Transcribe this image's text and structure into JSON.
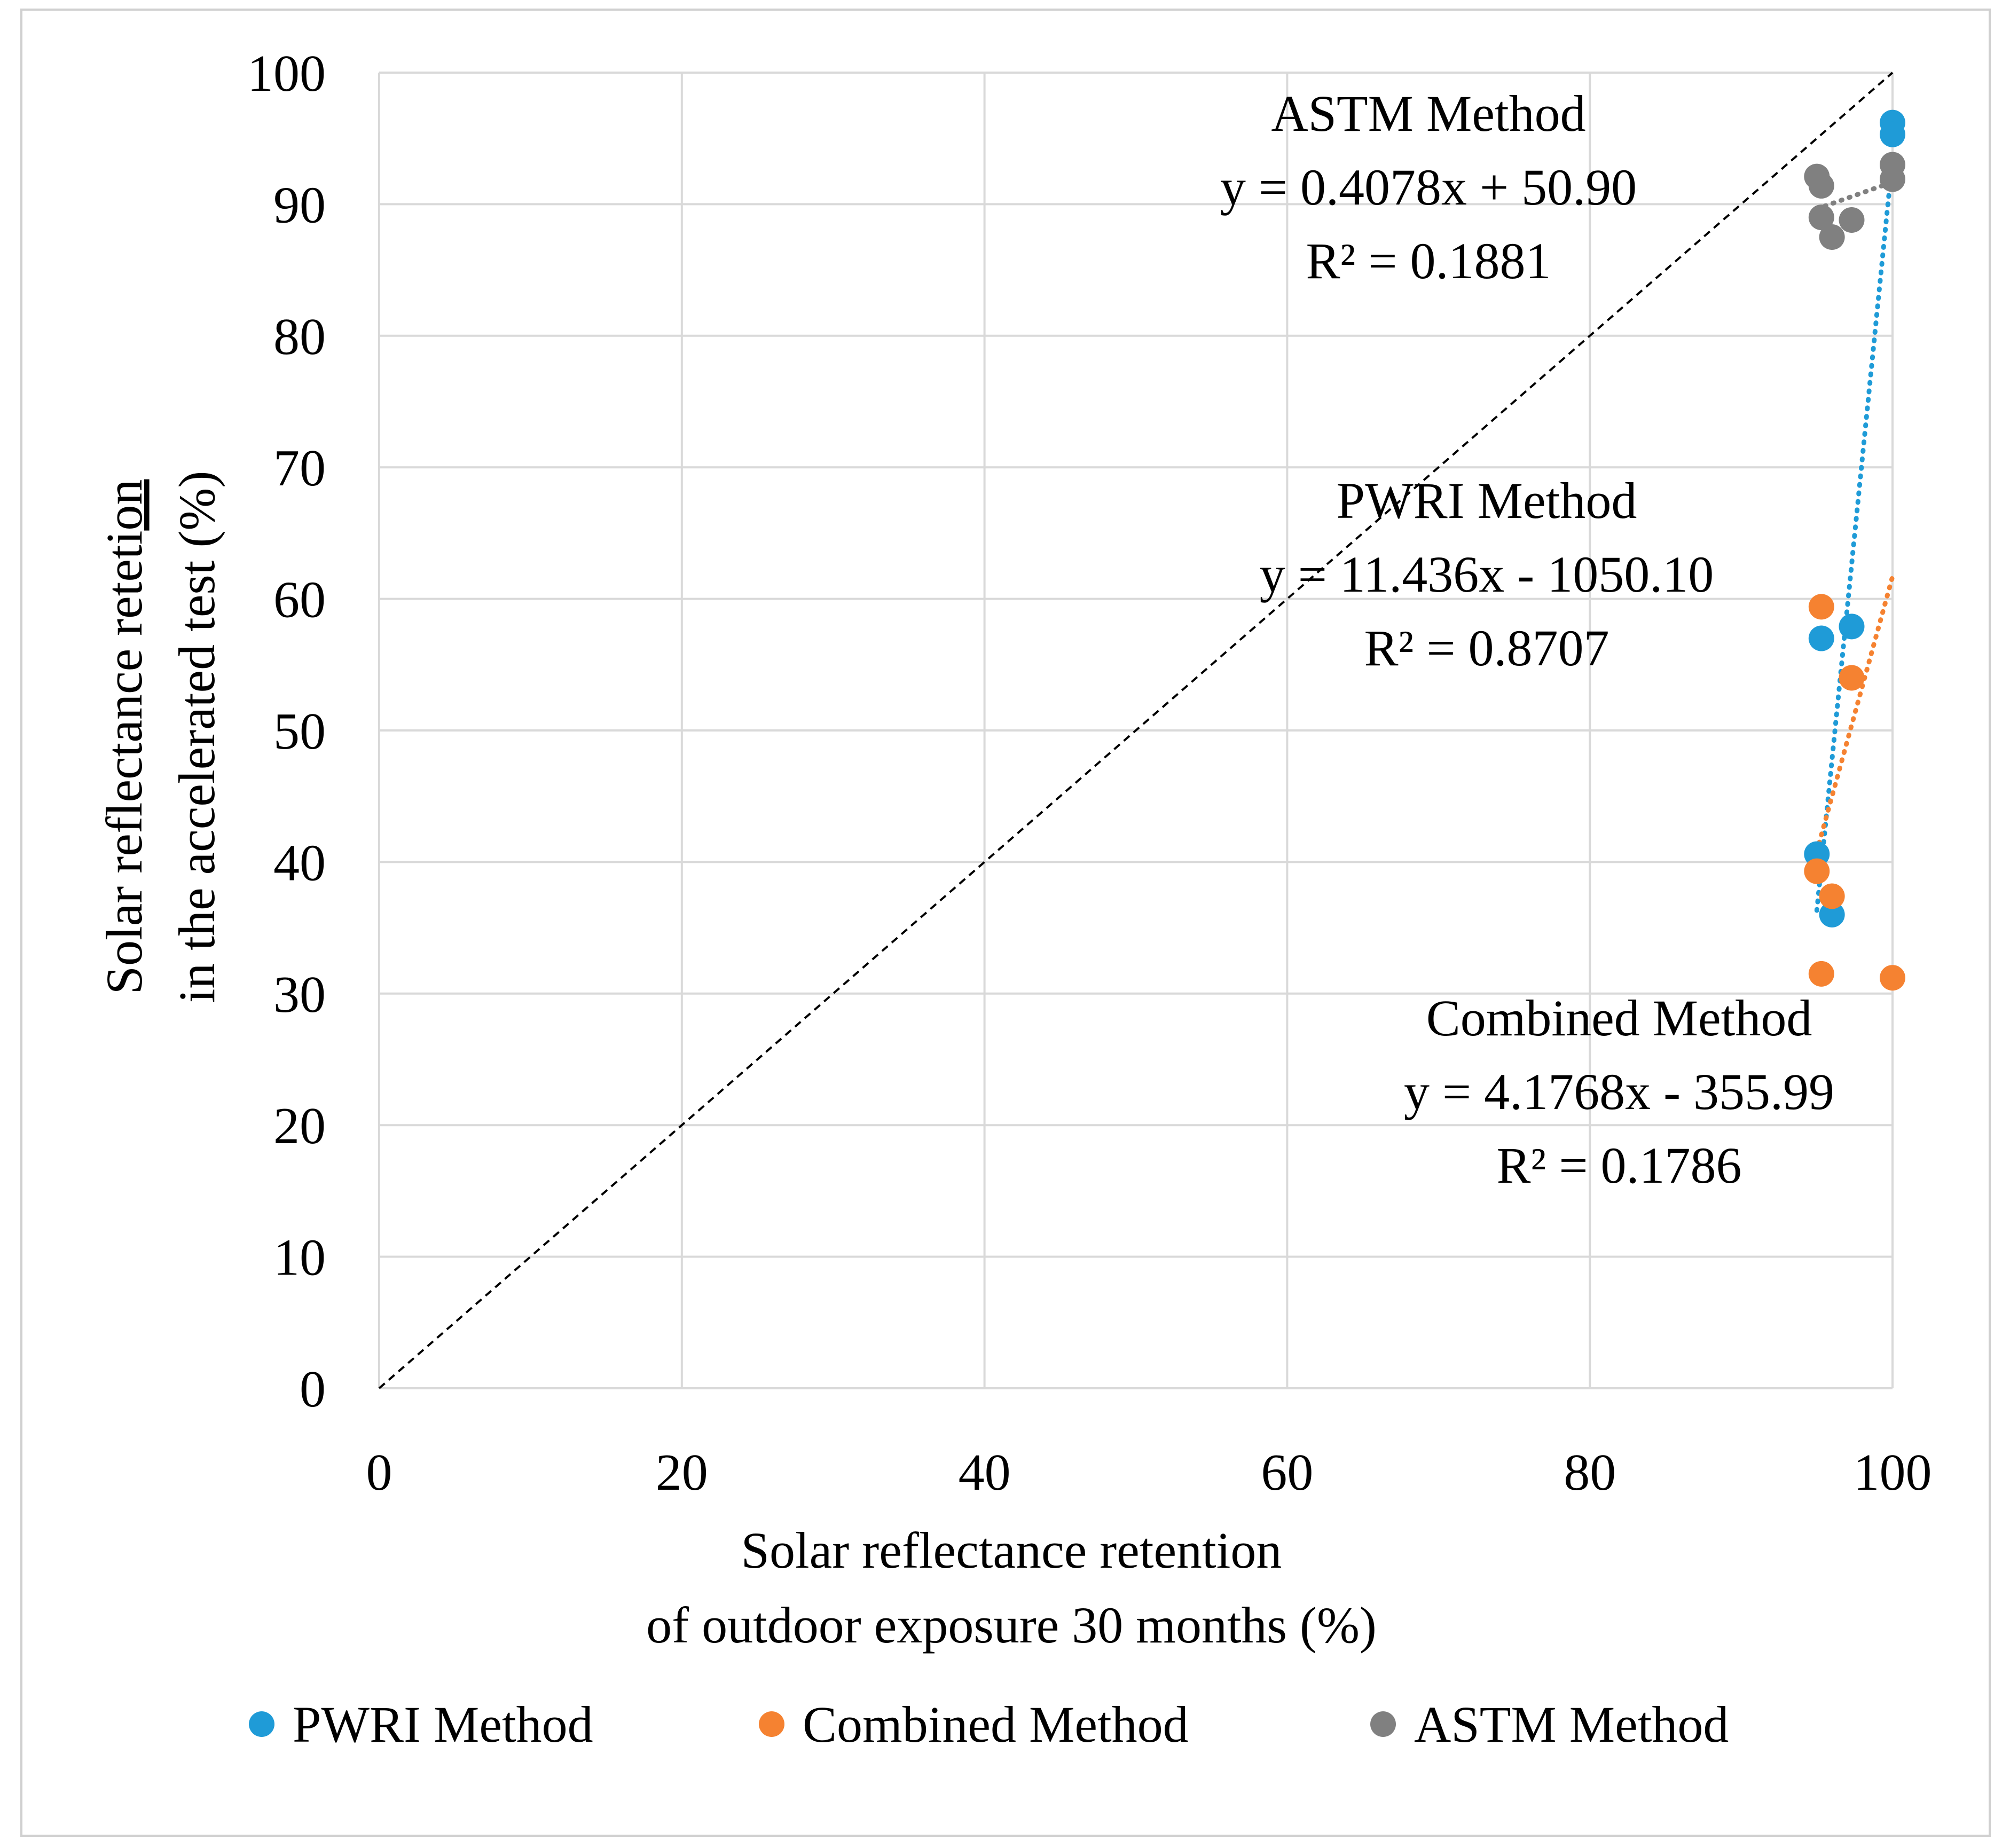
{
  "chart_data": {
    "type": "scatter",
    "xlabel_lines": [
      "Solar reflectance retention",
      "of outdoor exposure 30 months (%)"
    ],
    "ylabel_lines": [
      "Solar reflectance reteti",
      "in the accelerated test (%)"
    ],
    "ylabel_underlined": "on",
    "xlim": [
      0,
      100
    ],
    "ylim": [
      0,
      100
    ],
    "x_ticks": [
      0,
      20,
      40,
      60,
      80,
      100
    ],
    "y_ticks": [
      0,
      10,
      20,
      30,
      40,
      50,
      60,
      70,
      80,
      90,
      100
    ],
    "grid": true,
    "legend_position": "bottom",
    "reference_line": {
      "from": [
        0,
        0
      ],
      "to": [
        100,
        100
      ],
      "style": "dashed",
      "color": "#000000"
    },
    "series": [
      {
        "name": "PWRI Method",
        "color": "#1f9bd7",
        "points": [
          {
            "x": 100,
            "y": 96.2
          },
          {
            "x": 100,
            "y": 95.3
          },
          {
            "x": 95.3,
            "y": 57.0
          },
          {
            "x": 97.3,
            "y": 57.9
          },
          {
            "x": 95.0,
            "y": 40.6
          },
          {
            "x": 96.0,
            "y": 36.0
          }
        ],
        "trendline": {
          "slope": 11.436,
          "intercept": -1050.1,
          "x_from": 95.0,
          "x_to": 100
        }
      },
      {
        "name": "Combined Method",
        "color": "#f58231",
        "points": [
          {
            "x": 95.3,
            "y": 59.4
          },
          {
            "x": 97.3,
            "y": 54.0
          },
          {
            "x": 95.0,
            "y": 39.3
          },
          {
            "x": 96.0,
            "y": 37.4
          },
          {
            "x": 95.3,
            "y": 31.5
          },
          {
            "x": 100,
            "y": 31.2
          }
        ],
        "trendline": {
          "slope": 4.1768,
          "intercept": -355.99,
          "x_from": 95.0,
          "x_to": 100
        }
      },
      {
        "name": "ASTM Method",
        "color": "#808080",
        "points": [
          {
            "x": 95.0,
            "y": 92.1
          },
          {
            "x": 95.3,
            "y": 91.4
          },
          {
            "x": 100,
            "y": 93.0
          },
          {
            "x": 100,
            "y": 91.9
          },
          {
            "x": 95.3,
            "y": 89.0
          },
          {
            "x": 97.3,
            "y": 88.8
          },
          {
            "x": 96.0,
            "y": 87.5
          }
        ],
        "trendline": {
          "slope": 0.4078,
          "intercept": 50.9,
          "x_from": 95.0,
          "x_to": 100
        }
      }
    ],
    "annotations": [
      {
        "series": "ASTM Method",
        "lines": [
          "ASTM Method",
          "y = 0.4078x + 50.90",
          "R² = 0.1881"
        ]
      },
      {
        "series": "PWRI Method",
        "lines": [
          "PWRI Method",
          "y = 11.436x - 1050.10",
          "R² = 0.8707"
        ]
      },
      {
        "series": "Combined Method",
        "lines": [
          "Combined Method",
          "y = 4.1768x - 355.99",
          "R² = 0.1786"
        ]
      }
    ]
  }
}
